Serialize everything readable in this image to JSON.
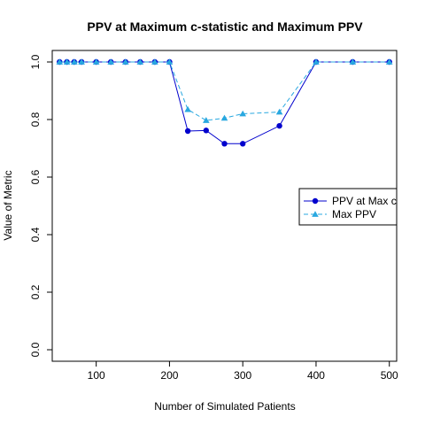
{
  "chart_data": {
    "type": "line",
    "title": "PPV at Maximum c-statistic and Maximum PPV",
    "xlabel": "Number of Simulated Patients",
    "ylabel": "Value of Metric",
    "xlim": [
      40,
      510
    ],
    "ylim": [
      -0.04,
      1.04
    ],
    "x_ticks": [
      100,
      200,
      300,
      400,
      500
    ],
    "y_ticks": [
      0.0,
      0.2,
      0.4,
      0.6,
      0.8,
      1.0
    ],
    "y_tick_labels": [
      "0.0",
      "0.2",
      "0.4",
      "0.6",
      "0.8",
      "1.0"
    ],
    "grid": false,
    "legend_position": "right",
    "series": [
      {
        "name": "PPV at Max c",
        "color": "#0000cd",
        "line": "solid",
        "marker": "circle",
        "x": [
          50,
          60,
          70,
          80,
          100,
          120,
          140,
          160,
          180,
          200,
          225,
          250,
          275,
          300,
          350,
          400,
          450,
          500
        ],
        "y": [
          1.0,
          1.0,
          1.0,
          1.0,
          1.0,
          1.0,
          1.0,
          1.0,
          1.0,
          1.0,
          0.76,
          0.762,
          0.716,
          0.716,
          0.778,
          1.0,
          1.0,
          1.0
        ]
      },
      {
        "name": "Max PPV",
        "color": "#29a8e0",
        "line": "dashed",
        "marker": "triangle",
        "x": [
          50,
          60,
          70,
          80,
          100,
          120,
          140,
          160,
          180,
          200,
          225,
          250,
          275,
          300,
          350,
          400,
          450,
          500
        ],
        "y": [
          1.0,
          1.0,
          1.0,
          1.0,
          1.0,
          1.0,
          1.0,
          1.0,
          1.0,
          1.0,
          0.835,
          0.797,
          0.805,
          0.82,
          0.826,
          1.0,
          1.0,
          1.0
        ]
      }
    ]
  }
}
